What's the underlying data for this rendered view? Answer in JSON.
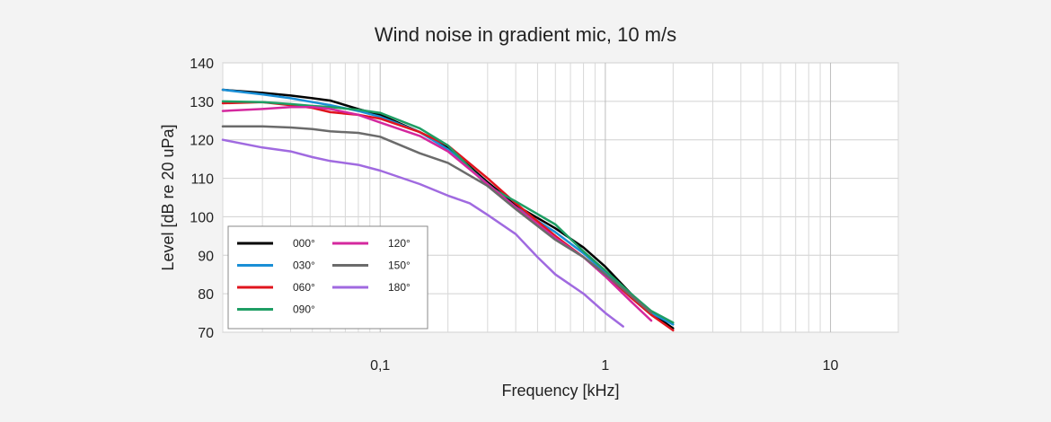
{
  "chart_data": {
    "type": "line",
    "title": "Wind noise in gradient mic, 10 m/s",
    "xlabel": "Frequency [kHz]",
    "ylabel": "Level [dB re 20 uPa]",
    "xscale": "log",
    "xlim": [
      0.02,
      20
    ],
    "ylim": [
      70,
      140
    ],
    "yticks": [
      70,
      80,
      90,
      100,
      110,
      120,
      130,
      140
    ],
    "xticks": [
      {
        "value": 0.1,
        "label": "0,1"
      },
      {
        "value": 1,
        "label": "1"
      },
      {
        "value": 10,
        "label": "10"
      }
    ],
    "grid": true,
    "legend": "lower-left",
    "series": [
      {
        "name": "000°",
        "color": "#000000",
        "x": [
          0.02,
          0.03,
          0.04,
          0.05,
          0.06,
          0.08,
          0.1,
          0.15,
          0.2,
          0.3,
          0.4,
          0.6,
          0.8,
          1.0,
          1.3,
          1.6,
          2.0
        ],
        "y": [
          133,
          132.2,
          131.5,
          130.8,
          130.2,
          128,
          126.5,
          122,
          118,
          109,
          103,
          97,
          92,
          87,
          80,
          75,
          71
        ]
      },
      {
        "name": "030°",
        "color": "#1a8fd6",
        "x": [
          0.02,
          0.03,
          0.04,
          0.05,
          0.06,
          0.08,
          0.1,
          0.15,
          0.2,
          0.3,
          0.4,
          0.6,
          0.8,
          1.0,
          1.3,
          1.6,
          2.0
        ],
        "y": [
          133,
          131.8,
          130.8,
          129.8,
          129,
          127.5,
          126,
          122,
          117.5,
          108.5,
          102.5,
          96,
          90.5,
          85.5,
          80,
          75,
          72
        ]
      },
      {
        "name": "060°",
        "color": "#e0141e",
        "x": [
          0.02,
          0.03,
          0.04,
          0.05,
          0.06,
          0.08,
          0.1,
          0.15,
          0.2,
          0.3,
          0.4,
          0.6,
          0.8,
          1.0,
          1.3,
          1.6,
          2.0
        ],
        "y": [
          129.5,
          129.8,
          129,
          128.3,
          127.2,
          126.5,
          125.5,
          122,
          118.5,
          110,
          103.5,
          95,
          89.5,
          85,
          79,
          74.5,
          70.5
        ]
      },
      {
        "name": "090°",
        "color": "#1e9e64",
        "x": [
          0.02,
          0.03,
          0.04,
          0.05,
          0.06,
          0.08,
          0.1,
          0.15,
          0.2,
          0.3,
          0.4,
          0.6,
          0.8,
          1.0,
          1.3,
          1.6,
          2.0
        ],
        "y": [
          130,
          129.8,
          129.3,
          128.8,
          128.5,
          127.8,
          127,
          123,
          118.5,
          108,
          104,
          98,
          91,
          86,
          80,
          75.5,
          72.5
        ]
      },
      {
        "name": "120°",
        "color": "#d4289e",
        "x": [
          0.02,
          0.03,
          0.04,
          0.05,
          0.06,
          0.08,
          0.1,
          0.15,
          0.2,
          0.3,
          0.4,
          0.6,
          0.8,
          1.0,
          1.3,
          1.6
        ],
        "y": [
          127.5,
          128,
          128.5,
          128.5,
          128,
          126.5,
          124.5,
          121,
          117,
          108.5,
          102.5,
          94.5,
          89.5,
          84.5,
          78,
          73
        ]
      },
      {
        "name": "150°",
        "color": "#6b6b6b",
        "x": [
          0.02,
          0.03,
          0.04,
          0.05,
          0.06,
          0.08,
          0.1,
          0.15,
          0.2,
          0.3,
          0.4,
          0.6,
          0.8,
          1.0,
          1.3,
          1.6
        ],
        "y": [
          123.5,
          123.5,
          123.2,
          122.8,
          122.2,
          121.8,
          120.8,
          116.5,
          114,
          108,
          102,
          94,
          89.5,
          85,
          79.5,
          75
        ]
      },
      {
        "name": "180°",
        "color": "#a06ae0",
        "x": [
          0.02,
          0.03,
          0.04,
          0.05,
          0.06,
          0.08,
          0.1,
          0.15,
          0.2,
          0.25,
          0.3,
          0.4,
          0.5,
          0.6,
          0.8,
          1.0,
          1.2
        ],
        "y": [
          120,
          118,
          117,
          115.5,
          114.5,
          113.5,
          112,
          108.5,
          105.5,
          103.5,
          100.5,
          95.5,
          89.5,
          85,
          80,
          75,
          71.5
        ]
      }
    ]
  }
}
